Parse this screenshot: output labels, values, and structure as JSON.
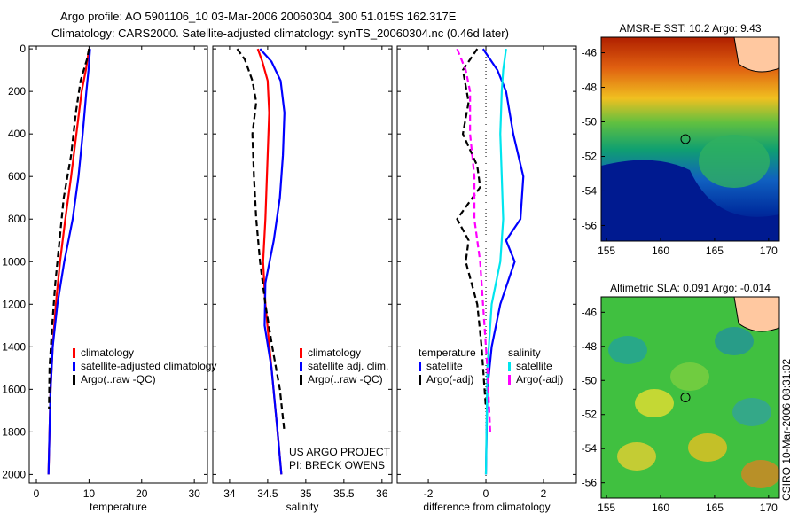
{
  "title_line1": "Argo profile: AO 5901106_10 03-Mar-2006 20060304_300 51.015S 162.317E",
  "title_line2": "Climatology: CARS2000. Satellite-adjusted climatology: synTS_20060304.nc (0.46d later)",
  "side_stamp": "CSIRO 10-Mar-2006 08:31:02",
  "chart_data": [
    {
      "type": "line",
      "xlabel": "temperature",
      "xlim": [
        -1.35,
        32.5
      ],
      "ylim": [
        2040,
        -13
      ],
      "xticks": [
        "0",
        "10",
        "20",
        "30"
      ],
      "xtick_vals": [
        0,
        10,
        20,
        30
      ],
      "yticks": [
        "0",
        "200",
        "400",
        "600",
        "800",
        "1000",
        "1200",
        "1400",
        "1600",
        "1800",
        "2000"
      ],
      "ytick_vals": [
        0,
        200,
        400,
        600,
        800,
        1000,
        1200,
        1400,
        1600,
        1800,
        2000
      ],
      "legend": [
        "climatology",
        "satellite-adjusted climatology",
        "Argo(..raw -QC)"
      ],
      "series": [
        {
          "name": "climatology",
          "color": "#ff0000",
          "dash": false,
          "depth": [
            0,
            100,
            200,
            400,
            600,
            800,
            1000,
            1200,
            1400,
            1600,
            1800,
            2000
          ],
          "values": [
            10,
            9.4,
            8.6,
            7.6,
            6.6,
            5.5,
            4.5,
            3.7,
            3.1,
            2.7,
            2.5,
            2.3
          ]
        },
        {
          "name": "satellite-adjusted climatology",
          "color": "#0000ff",
          "dash": false,
          "depth": [
            0,
            100,
            200,
            400,
            600,
            800,
            1000,
            1200,
            1400,
            1600,
            1800,
            2000
          ],
          "values": [
            10.2,
            9.9,
            9.5,
            8.8,
            8,
            6.9,
            5.3,
            4,
            3.1,
            2.7,
            2.5,
            2.3
          ]
        },
        {
          "name": "Argo(..raw -QC)",
          "color": "#000000",
          "dash": true,
          "depth": [
            0,
            50,
            150,
            300,
            500,
            700,
            900,
            1100,
            1300,
            1500,
            1690
          ],
          "values": [
            10,
            9.6,
            8.4,
            7.5,
            6.6,
            5.2,
            4.4,
            3.6,
            3,
            2.5,
            2.4
          ]
        }
      ]
    },
    {
      "type": "line",
      "xlabel": "salinity",
      "xlim": [
        33.78,
        36.13
      ],
      "ylim": [
        2040,
        -13
      ],
      "xticks": [
        "34",
        "34.5",
        "35",
        "35.5",
        "36"
      ],
      "xtick_vals": [
        34,
        34.5,
        35,
        35.5,
        36
      ],
      "legend": [
        "climatology",
        "satellite adj. clim.",
        "Argo(..raw -QC)"
      ],
      "annotation": [
        "US ARGO PROJECT",
        "PI: BRECK OWENS"
      ],
      "series": [
        {
          "name": "climatology",
          "color": "#ff0000",
          "dash": false,
          "depth": [
            0,
            60,
            150,
            300,
            500,
            800,
            1000,
            1200,
            1500,
            1800,
            2000
          ],
          "values": [
            34.37,
            34.43,
            34.5,
            34.52,
            34.5,
            34.47,
            34.44,
            34.47,
            34.55,
            34.63,
            34.68
          ]
        },
        {
          "name": "satellite adj. clim.",
          "color": "#0000ff",
          "dash": false,
          "depth": [
            0,
            60,
            150,
            300,
            500,
            700,
            900,
            1100,
            1300,
            1500,
            1800,
            2000
          ],
          "values": [
            34.4,
            34.55,
            34.67,
            34.72,
            34.7,
            34.66,
            34.58,
            34.47,
            34.46,
            34.55,
            34.63,
            34.68
          ]
        },
        {
          "name": "Argo(..raw -QC)",
          "color": "#000000",
          "dash": true,
          "depth": [
            0,
            50,
            150,
            250,
            400,
            600,
            800,
            1000,
            1200,
            1400,
            1600,
            1800
          ],
          "values": [
            34.1,
            34.2,
            34.3,
            34.35,
            34.3,
            34.32,
            34.35,
            34.4,
            34.47,
            34.56,
            34.66,
            34.72
          ]
        }
      ]
    },
    {
      "type": "line",
      "xlabel": "difference from climatology",
      "xlim": [
        -3.08,
        3.14
      ],
      "ylim": [
        2040,
        -13
      ],
      "xticks": [
        "-2",
        "0",
        "2"
      ],
      "xtick_vals": [
        -2,
        0,
        2
      ],
      "legend_left": [
        "temperature",
        "satellite",
        "Argo(-adj)"
      ],
      "legend_right": [
        "salinity",
        "satellite",
        "Argo(-adj)"
      ],
      "series": [
        {
          "name": "temperature satellite",
          "color": "#0000ff",
          "dash": false,
          "depth": [
            0,
            100,
            200,
            400,
            600,
            800,
            900,
            1000,
            1200,
            1400,
            1600,
            2000
          ],
          "values": [
            -0.1,
            0.4,
            0.7,
            0.95,
            1.3,
            1.2,
            0.7,
            1,
            0.5,
            0.2,
            0.05,
            0
          ]
        },
        {
          "name": "temperature Argo(-adj)",
          "color": "#000000",
          "dash": true,
          "depth": [
            0,
            100,
            250,
            400,
            550,
            650,
            800,
            900,
            1000,
            1200,
            1400,
            1690
          ],
          "values": [
            -0.3,
            -0.8,
            -0.6,
            -0.8,
            -0.3,
            -0.2,
            -1,
            -0.6,
            -0.7,
            -0.3,
            -0.15,
            0
          ]
        },
        {
          "name": "salinity satellite",
          "color": "#00e5ee",
          "dash": false,
          "depth": [
            0,
            100,
            200,
            400,
            600,
            800,
            1000,
            1200,
            1500,
            2000
          ],
          "values": [
            0.7,
            0.6,
            0.55,
            0.5,
            0.55,
            0.6,
            0.5,
            0.2,
            0.05,
            0
          ]
        },
        {
          "name": "salinity Argo(-adj)",
          "color": "#ff00ff",
          "dash": true,
          "depth": [
            0,
            100,
            200,
            400,
            600,
            800,
            1000,
            1200,
            1500,
            1800
          ],
          "values": [
            -1,
            -0.7,
            -0.55,
            -0.55,
            -0.4,
            -0.4,
            -0.2,
            -0.1,
            0.05,
            0.15
          ]
        }
      ]
    },
    {
      "type": "heatmap",
      "title": "AMSR-E SST: 10.2 Argo: 9.43",
      "xticks": [
        "155",
        "160",
        "165",
        "170"
      ],
      "xtick_vals": [
        155,
        160,
        165,
        170
      ],
      "yticks": [
        "-46",
        "-48",
        "-50",
        "-52",
        "-54",
        "-56"
      ],
      "ytick_vals": [
        -46,
        -48,
        -50,
        -52,
        -54,
        -56
      ],
      "xlim": [
        154.5,
        171
      ],
      "ylim": [
        -45.1,
        -56.9
      ],
      "marker": [
        162.3,
        -51.0
      ]
    },
    {
      "type": "heatmap",
      "title": "Altimetric SLA: 0.091 Argo: -0.014",
      "xticks": [
        "155",
        "160",
        "165",
        "170"
      ],
      "xtick_vals": [
        155,
        160,
        165,
        170
      ],
      "yticks": [
        "-46",
        "-48",
        "-50",
        "-52",
        "-54",
        "-56"
      ],
      "ytick_vals": [
        -46,
        -48,
        -50,
        -52,
        -54,
        -56
      ],
      "xlim": [
        154.5,
        171
      ],
      "ylim": [
        -45.1,
        -56.9
      ],
      "marker": [
        162.3,
        -51.0
      ]
    }
  ]
}
